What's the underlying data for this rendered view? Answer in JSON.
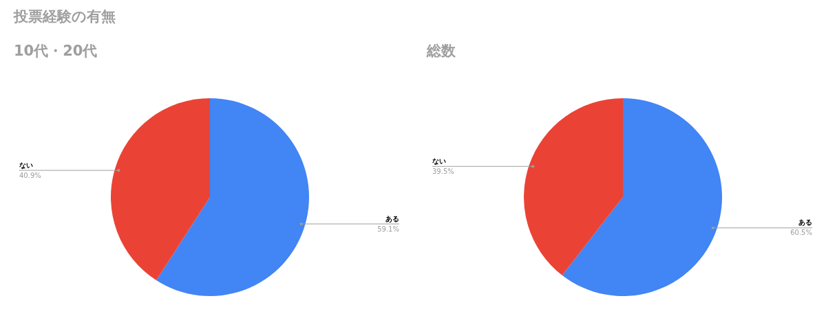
{
  "chart_data": [
    {
      "type": "pie",
      "title": "投票経験の有無",
      "subtitle": "10代・20代",
      "categories": [
        "ある",
        "ない"
      ],
      "values": [
        59.1,
        40.9
      ],
      "colors": [
        "#4285f4",
        "#ea4335"
      ],
      "value_labels": [
        "59.1%",
        "40.9%"
      ],
      "legend": false
    },
    {
      "type": "pie",
      "title": "総数",
      "categories": [
        "ある",
        "ない"
      ],
      "values": [
        60.5,
        39.5
      ],
      "colors": [
        "#4285f4",
        "#ea4335"
      ],
      "value_labels": [
        "60.5%",
        "39.5%"
      ],
      "legend": false
    }
  ]
}
